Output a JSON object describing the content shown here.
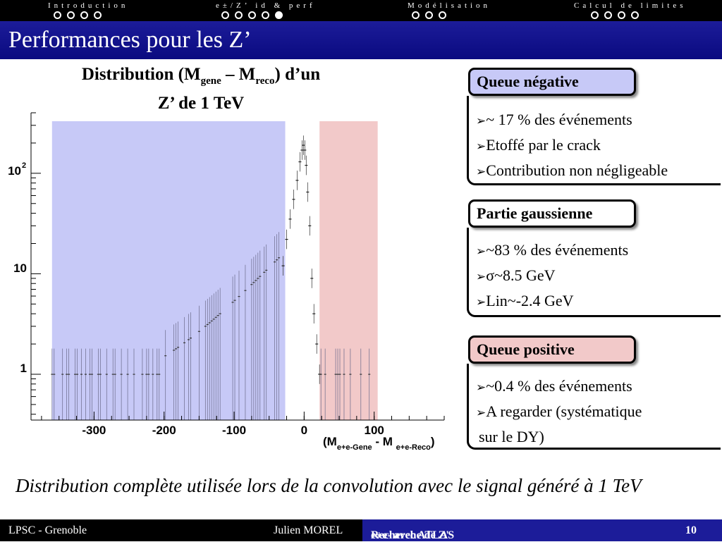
{
  "nav": {
    "sections": [
      {
        "label": "Introduction",
        "dots": 4,
        "active": -1
      },
      {
        "label": "e±/Z’ id & perf",
        "dots": 5,
        "active": 4
      },
      {
        "label": "Modélisation",
        "dots": 3,
        "active": -1
      },
      {
        "label": "Calcul de limites",
        "dots": 4,
        "active": -1
      }
    ]
  },
  "slide": {
    "title": "Performances pour les Z’",
    "plot_title_1": "Distribution (M",
    "plot_title_sub1": "gene",
    "plot_title_2": " – M",
    "plot_title_sub2": "reco",
    "plot_title_3": ") d’un",
    "plot_title_line2": "Z’ de 1 TeV",
    "caption": "Distribution complète utilisée lors de la convolution avec le signal généré à 1 TeV"
  },
  "boxes": [
    {
      "title": "Queue négative",
      "bg": "#c7c9f7",
      "bullets": [
        "~ 17 % des événements",
        "Etoffé par le crack",
        "Contribution non négligeable"
      ]
    },
    {
      "title": "Partie gaussienne",
      "bg": "#ffffff",
      "bullets": [
        "~83 % des événements",
        "σ~8.5 GeV",
        "Lin~-2.4 GeV"
      ]
    },
    {
      "title": "Queue positive",
      "bg": "#f2c9c9",
      "bullets": [
        "~0.4 % des événements",
        "A regarder (systématique",
        "sur le DY)"
      ]
    }
  ],
  "chart_data": {
    "type": "bar",
    "yscale": "log",
    "x_range": [
      -390,
      200
    ],
    "ylim": [
      0.35,
      400
    ],
    "x_ticks": [
      "-300",
      "-200",
      "-100",
      "0",
      "100"
    ],
    "x_tick_values": [
      -300,
      -200,
      -100,
      0,
      100
    ],
    "y_ticks": [
      "1",
      "10",
      "10"
    ],
    "y_tick_values": [
      1,
      10,
      100
    ],
    "y_tick_sup": [
      "",
      "",
      "2"
    ],
    "xlabel_main": "(M",
    "xlabel_sub1": "e+e-Gene",
    "xlabel_mid": " - M ",
    "xlabel_sub2": "e+e-Reco",
    "xlabel_end": ")",
    "regions": [
      {
        "from": -360,
        "to": -27,
        "color": "#c7c9f7"
      },
      {
        "from": 22,
        "to": 105,
        "color": "#f2c9c9"
      }
    ],
    "bins": {
      "x": [
        -30,
        -25,
        -20,
        -15,
        -10,
        -6,
        -3,
        -1,
        1,
        3,
        5,
        8,
        11,
        14,
        18,
        22
      ],
      "y": [
        12,
        22,
        35,
        55,
        85,
        130,
        170,
        190,
        170,
        120,
        65,
        30,
        9,
        4,
        2,
        1
      ]
    }
  },
  "footer": {
    "left": "LPSC - Grenoble",
    "author": "Julien MOREL",
    "center_pre": "Recherche de Z' ",
    "center_arrow": "→",
    "center_post": "e+e- avec ATLAS",
    "page": "10"
  }
}
